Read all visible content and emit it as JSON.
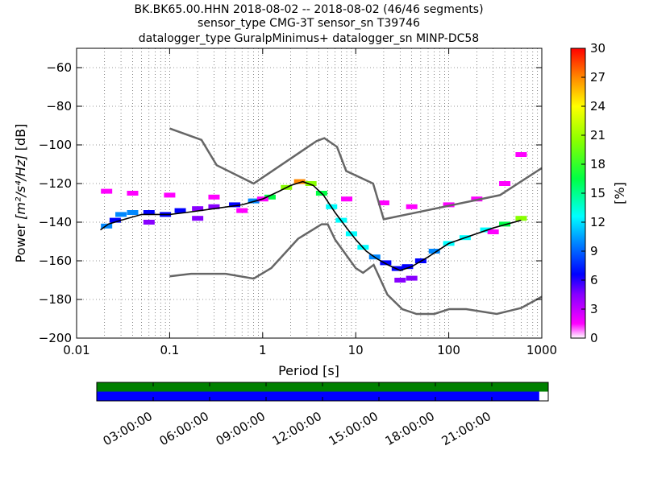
{
  "chart_data": [
    {
      "type": "heatmap",
      "title_lines": [
        "BK.BK65.00.HHN   2018-08-02 -- 2018-08-02  (46/46 segments)",
        "sensor_type CMG-3T sensor_sn T39746",
        "datalogger_type GuralpMinimus+ datalogger_sn MINP-DC58"
      ],
      "xlabel": "Period [s]",
      "ylabel_prefix": "Power ",
      "ylabel_math": "[m²/s⁴/Hz]",
      "ylabel_suffix": " [dB]",
      "xscale": "log",
      "xlim": [
        0.01,
        1000
      ],
      "ylim": [
        -200,
        -50
      ],
      "x_ticks": [
        0.01,
        0.1,
        1,
        10,
        100,
        1000
      ],
      "x_tick_labels": [
        "0.01",
        "0.1",
        "1",
        "10",
        "100",
        "1000"
      ],
      "y_ticks": [
        -200,
        -180,
        -160,
        -140,
        -120,
        -100,
        -80,
        -60
      ],
      "y_tick_labels": [
        "−200",
        "−180",
        "−160",
        "−140",
        "−120",
        "−100",
        "−80",
        "−60"
      ],
      "grid": true,
      "colorbar": {
        "label": "[%]",
        "range": [
          0,
          30
        ],
        "ticks": [
          0,
          3,
          6,
          9,
          12,
          15,
          18,
          21,
          24,
          27,
          30
        ],
        "tick_labels": [
          "0",
          "3",
          "6",
          "9",
          "12",
          "15",
          "18",
          "21",
          "24",
          "27",
          "30"
        ],
        "colormap": [
          "#ffffff",
          "#ff00ff",
          "#8800ff",
          "#0000ff",
          "#0088ff",
          "#00ffff",
          "#00ff44",
          "#88ff00",
          "#ffff00",
          "#ff8800",
          "#ff0000"
        ]
      },
      "nlnm": {
        "name": "NLNM",
        "x": [
          0.1,
          0.17,
          0.4,
          0.8,
          1.24,
          2.4,
          4.3,
          5.0,
          6.0,
          10.0,
          12.0,
          15.6,
          21.9,
          31.6,
          45.0,
          70.0,
          101.0,
          154.0,
          328.0,
          600.0,
          1000.0
        ],
        "y": [
          -168.0,
          -166.7,
          -166.7,
          -169.2,
          -163.7,
          -148.6,
          -141.1,
          -141.1,
          -149.0,
          -163.8,
          -166.2,
          -162.1,
          -177.5,
          -185.0,
          -187.5,
          -187.5,
          -185.0,
          -185.0,
          -187.5,
          -184.4,
          -178.6
        ]
      },
      "nhnm": {
        "name": "NHNM",
        "x": [
          0.1,
          0.22,
          0.32,
          0.8,
          3.8,
          4.6,
          6.3,
          7.9,
          15.4,
          20.0,
          354.8,
          1000.0
        ],
        "y": [
          -91.5,
          -97.4,
          -110.5,
          -120.0,
          -98.0,
          -96.5,
          -101.0,
          -113.5,
          -120.0,
          -138.5,
          -126.0,
          -112.0
        ]
      },
      "median": {
        "x": [
          0.018,
          0.022,
          0.03,
          0.05,
          0.1,
          0.15,
          0.3,
          0.6,
          1.0,
          1.5,
          2.0,
          2.7,
          3.5,
          4.5,
          6.0,
          8.0,
          10.0,
          13.0,
          17.0,
          22.0,
          30.0,
          40.0,
          60.0,
          100.0,
          150.0,
          300.0,
          600.0
        ],
        "y": [
          -144,
          -141,
          -139,
          -136,
          -136,
          -135,
          -133,
          -131,
          -128,
          -124,
          -121,
          -119,
          -121,
          -126,
          -135,
          -143,
          -149,
          -155,
          -159,
          -162,
          -165,
          -163,
          -158,
          -151,
          -148,
          -143,
          -139
        ]
      },
      "pdf_cells": [
        {
          "x": 0.021,
          "y": -142,
          "p": 12
        },
        {
          "x": 0.026,
          "y": -139,
          "p": 10
        },
        {
          "x": 0.03,
          "y": -136,
          "p": 12
        },
        {
          "x": 0.04,
          "y": -135,
          "p": 11
        },
        {
          "x": 0.06,
          "y": -135,
          "p": 9
        },
        {
          "x": 0.09,
          "y": -136,
          "p": 8
        },
        {
          "x": 0.13,
          "y": -134,
          "p": 9
        },
        {
          "x": 0.2,
          "y": -133,
          "p": 7
        },
        {
          "x": 0.3,
          "y": -132,
          "p": 7
        },
        {
          "x": 0.5,
          "y": -131,
          "p": 8
        },
        {
          "x": 0.8,
          "y": -129,
          "p": 12
        },
        {
          "x": 1.2,
          "y": -127,
          "p": 18
        },
        {
          "x": 1.8,
          "y": -122,
          "p": 22
        },
        {
          "x": 2.5,
          "y": -119,
          "p": 27
        },
        {
          "x": 3.3,
          "y": -120,
          "p": 22
        },
        {
          "x": 4.3,
          "y": -125,
          "p": 18
        },
        {
          "x": 5.5,
          "y": -132,
          "p": 16
        },
        {
          "x": 7.0,
          "y": -139,
          "p": 15
        },
        {
          "x": 9.0,
          "y": -146,
          "p": 15
        },
        {
          "x": 12.0,
          "y": -153,
          "p": 14
        },
        {
          "x": 16.0,
          "y": -158,
          "p": 12
        },
        {
          "x": 21.0,
          "y": -161,
          "p": 10
        },
        {
          "x": 28.0,
          "y": -164,
          "p": 8
        },
        {
          "x": 36.0,
          "y": -163,
          "p": 8
        },
        {
          "x": 50.0,
          "y": -160,
          "p": 10
        },
        {
          "x": 70.0,
          "y": -155,
          "p": 13
        },
        {
          "x": 100.0,
          "y": -151,
          "p": 16
        },
        {
          "x": 150.0,
          "y": -148,
          "p": 15
        },
        {
          "x": 250.0,
          "y": -144,
          "p": 14
        },
        {
          "x": 400.0,
          "y": -141,
          "p": 18
        },
        {
          "x": 600.0,
          "y": -138,
          "p": 20
        },
        {
          "x": 0.021,
          "y": -124,
          "p": 2
        },
        {
          "x": 0.04,
          "y": -125,
          "p": 2
        },
        {
          "x": 0.1,
          "y": -126,
          "p": 2
        },
        {
          "x": 0.3,
          "y": -127,
          "p": 2
        },
        {
          "x": 1.0,
          "y": -128,
          "p": 2
        },
        {
          "x": 8.0,
          "y": -128,
          "p": 2
        },
        {
          "x": 20.0,
          "y": -130,
          "p": 2
        },
        {
          "x": 40.0,
          "y": -132,
          "p": 2
        },
        {
          "x": 100.0,
          "y": -131,
          "p": 2
        },
        {
          "x": 200.0,
          "y": -128,
          "p": 2
        },
        {
          "x": 400.0,
          "y": -120,
          "p": 2
        },
        {
          "x": 600.0,
          "y": -105,
          "p": 2
        },
        {
          "x": 0.06,
          "y": -140,
          "p": 5
        },
        {
          "x": 0.2,
          "y": -138,
          "p": 5
        },
        {
          "x": 0.6,
          "y": -134,
          "p": 4
        },
        {
          "x": 30.0,
          "y": -170,
          "p": 6
        },
        {
          "x": 40.0,
          "y": -169,
          "p": 5
        },
        {
          "x": 300.0,
          "y": -145,
          "p": 3
        }
      ]
    },
    {
      "type": "bar",
      "series": [
        {
          "name": "",
          "color": "#008000",
          "start": 0,
          "end": 1
        },
        {
          "name": "",
          "color": "#0000ff",
          "start": 0,
          "end": 0.98
        }
      ],
      "x_ticks_h": [
        3,
        6,
        9,
        12,
        15,
        18,
        21
      ],
      "x_tick_labels": [
        "03:00:00",
        "06:00:00",
        "09:00:00",
        "12:00:00",
        "15:00:00",
        "18:00:00",
        "21:00:00"
      ],
      "xlim_h": [
        0,
        24
      ]
    }
  ],
  "fig_title": "",
  "note": ""
}
